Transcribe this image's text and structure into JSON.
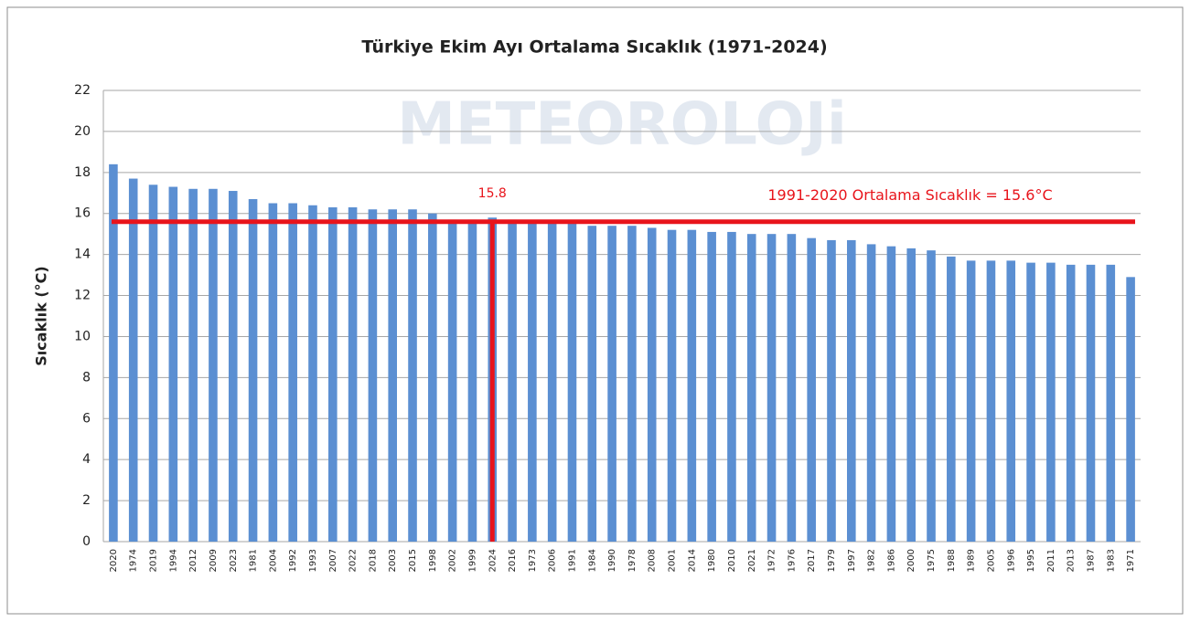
{
  "chart_data": {
    "type": "bar",
    "title": "Türkiye Ekim Ayı Ortalama Sıcaklık (1971-2024)",
    "watermark": "METEOROLOJi",
    "y_label": "Sıcaklık (°C)",
    "categories": [
      "2020",
      "1974",
      "2019",
      "1994",
      "2012",
      "2009",
      "2023",
      "1981",
      "2004",
      "1992",
      "1993",
      "2007",
      "2022",
      "2018",
      "2003",
      "2015",
      "1998",
      "2002",
      "1999",
      "2024",
      "2016",
      "1973",
      "2006",
      "1991",
      "1984",
      "1990",
      "1978",
      "2008",
      "2001",
      "2014",
      "1980",
      "2010",
      "2021",
      "1972",
      "1976",
      "2017",
      "1979",
      "1997",
      "1982",
      "1986",
      "2000",
      "1975",
      "1988",
      "1989",
      "2005",
      "1996",
      "1995",
      "2011",
      "2013",
      "1987",
      "1983",
      "1971"
    ],
    "values": [
      18.4,
      17.7,
      17.4,
      17.3,
      17.2,
      17.2,
      17.1,
      16.7,
      16.5,
      16.5,
      16.4,
      16.3,
      16.3,
      16.2,
      16.2,
      16.2,
      16.0,
      15.7,
      15.7,
      15.8,
      15.7,
      15.6,
      15.6,
      15.6,
      15.4,
      15.4,
      15.4,
      15.3,
      15.2,
      15.2,
      15.1,
      15.1,
      15.0,
      15.0,
      15.0,
      14.8,
      14.7,
      14.7,
      14.5,
      14.4,
      14.3,
      14.2,
      13.9,
      13.7,
      13.7,
      13.7,
      13.6,
      13.6,
      13.5,
      13.5,
      13.5,
      12.9
    ],
    "value_labels": [
      null,
      null,
      null,
      null,
      null,
      null,
      null,
      null,
      null,
      null,
      null,
      null,
      null,
      null,
      null,
      null,
      null,
      null,
      null,
      "15.8",
      null,
      null,
      null,
      null,
      null,
      null,
      null,
      null,
      null,
      null,
      null,
      null,
      null,
      null,
      null,
      null,
      null,
      null,
      null,
      null,
      null,
      null,
      null,
      null,
      null,
      null,
      null,
      null,
      null,
      null,
      null,
      null
    ],
    "color": "#5b8fd2",
    "highlight_color": "#e8141b",
    "reference_line": {
      "value": 15.6,
      "label": "1991-2020 Ortalama Sıcaklık = 15.6°C"
    },
    "ylim": [
      0,
      22
    ],
    "yticks": [
      0,
      2,
      4,
      6,
      8,
      10,
      12,
      14,
      16,
      18,
      20,
      22
    ],
    "grid": true
  }
}
